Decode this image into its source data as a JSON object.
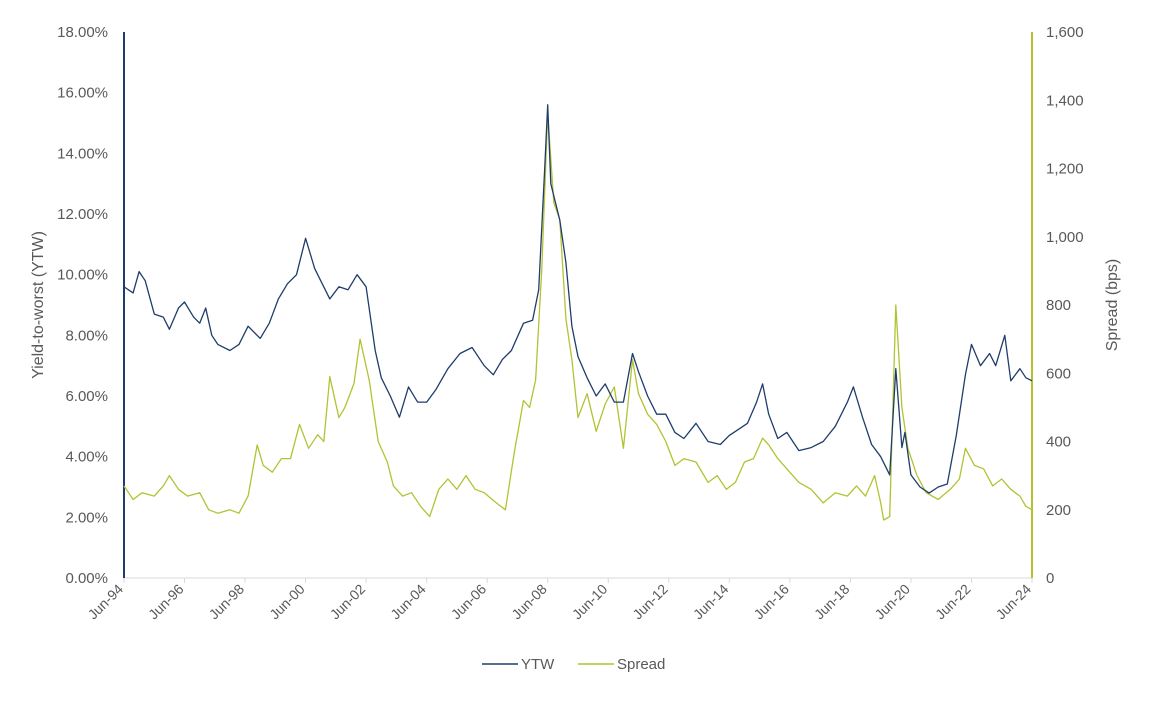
{
  "colors": {
    "ytw": "#1f3d6b",
    "spread": "#b3c232",
    "axis_text": "#595959",
    "left_axis_line": "#1f3d6b",
    "right_axis_line": "#b3c232",
    "baseline": "#d9d9d9"
  },
  "chart_data": {
    "type": "line",
    "title": "",
    "x_tick_labels": [
      "Jun-94",
      "Jun-96",
      "Jun-98",
      "Jun-00",
      "Jun-02",
      "Jun-04",
      "Jun-06",
      "Jun-08",
      "Jun-10",
      "Jun-12",
      "Jun-14",
      "Jun-16",
      "Jun-18",
      "Jun-20",
      "Jun-22",
      "Jun-24"
    ],
    "xlim": [
      1994.5,
      2024.5
    ],
    "y_left": {
      "label": "Yield-to-worst (YTW)",
      "ticks": [
        "0.00%",
        "2.00%",
        "4.00%",
        "6.00%",
        "8.00%",
        "10.00%",
        "12.00%",
        "14.00%",
        "16.00%",
        "18.00%"
      ],
      "ylim": [
        0,
        18
      ]
    },
    "y_right": {
      "label": "Spread (bps)",
      "ticks": [
        "0",
        "200",
        "400",
        "600",
        "800",
        "1,000",
        "1,200",
        "1,400",
        "1,600"
      ],
      "ylim": [
        0,
        1600
      ]
    },
    "legend_position": "bottom-center",
    "series": [
      {
        "name": "YTW",
        "axis": "left",
        "x": [
          1994.5,
          1994.8,
          1995.0,
          1995.2,
          1995.5,
          1995.8,
          1996.0,
          1996.3,
          1996.5,
          1996.8,
          1997.0,
          1997.2,
          1997.4,
          1997.6,
          1998.0,
          1998.3,
          1998.6,
          1999.0,
          1999.3,
          1999.6,
          1999.9,
          2000.2,
          2000.5,
          2000.8,
          2001.0,
          2001.3,
          2001.6,
          2001.9,
          2002.2,
          2002.5,
          2002.8,
          2003.0,
          2003.3,
          2003.6,
          2003.9,
          2004.2,
          2004.5,
          2004.8,
          2005.2,
          2005.6,
          2006.0,
          2006.4,
          2006.7,
          2007.0,
          2007.3,
          2007.7,
          2008.0,
          2008.2,
          2008.4,
          2008.5,
          2008.6,
          2008.9,
          2009.1,
          2009.3,
          2009.5,
          2009.8,
          2010.1,
          2010.4,
          2010.7,
          2011.0,
          2011.3,
          2011.5,
          2011.8,
          2012.1,
          2012.4,
          2012.7,
          2013.0,
          2013.4,
          2013.8,
          2014.2,
          2014.5,
          2014.8,
          2015.1,
          2015.4,
          2015.6,
          2015.8,
          2016.1,
          2016.4,
          2016.8,
          2017.2,
          2017.6,
          2018.0,
          2018.4,
          2018.6,
          2018.9,
          2019.2,
          2019.5,
          2019.8,
          2020.0,
          2020.2,
          2020.3,
          2020.5,
          2020.8,
          2021.1,
          2021.4,
          2021.7,
          2022.0,
          2022.3,
          2022.5,
          2022.8,
          2023.1,
          2023.3,
          2023.6,
          2023.8,
          2024.1,
          2024.3,
          2024.5
        ],
        "values": [
          9.6,
          9.4,
          10.1,
          9.8,
          8.7,
          8.6,
          8.2,
          8.9,
          9.1,
          8.6,
          8.4,
          8.9,
          8.0,
          7.7,
          7.5,
          7.7,
          8.3,
          7.9,
          8.4,
          9.2,
          9.7,
          10.0,
          11.2,
          10.2,
          9.8,
          9.2,
          9.6,
          9.5,
          10.0,
          9.6,
          7.5,
          6.6,
          6.0,
          5.3,
          6.3,
          5.8,
          5.8,
          6.2,
          6.9,
          7.4,
          7.6,
          7.0,
          6.7,
          7.2,
          7.5,
          8.4,
          8.5,
          9.5,
          13.5,
          15.6,
          13.0,
          11.8,
          10.4,
          8.3,
          7.3,
          6.6,
          6.0,
          6.4,
          5.8,
          5.8,
          7.4,
          6.8,
          6.0,
          5.4,
          5.4,
          4.8,
          4.6,
          5.1,
          4.5,
          4.4,
          4.7,
          4.9,
          5.1,
          5.8,
          6.4,
          5.4,
          4.6,
          4.8,
          4.2,
          4.3,
          4.5,
          5.0,
          5.8,
          6.3,
          5.3,
          4.4,
          4.0,
          3.4,
          6.9,
          4.3,
          4.8,
          3.4,
          3.0,
          2.8,
          3.0,
          3.1,
          4.7,
          6.7,
          7.7,
          7.0,
          7.4,
          7.0,
          8.0,
          6.5,
          6.9,
          6.6,
          6.5
        ]
      },
      {
        "name": "Spread",
        "axis": "right",
        "x": [
          1994.5,
          1994.8,
          1995.1,
          1995.5,
          1995.8,
          1996.0,
          1996.3,
          1996.6,
          1997.0,
          1997.3,
          1997.6,
          1998.0,
          1998.3,
          1998.6,
          1998.9,
          1999.1,
          1999.4,
          1999.7,
          2000.0,
          2000.3,
          2000.6,
          2000.9,
          2001.1,
          2001.3,
          2001.6,
          2001.8,
          2002.1,
          2002.3,
          2002.6,
          2002.9,
          2003.2,
          2003.4,
          2003.7,
          2004.0,
          2004.3,
          2004.6,
          2004.9,
          2005.2,
          2005.5,
          2005.8,
          2006.1,
          2006.4,
          2006.8,
          2007.1,
          2007.4,
          2007.7,
          2007.9,
          2008.1,
          2008.3,
          2008.5,
          2008.7,
          2008.9,
          2009.1,
          2009.3,
          2009.5,
          2009.8,
          2010.1,
          2010.4,
          2010.7,
          2011.0,
          2011.3,
          2011.5,
          2011.8,
          2012.1,
          2012.4,
          2012.7,
          2013.0,
          2013.4,
          2013.8,
          2014.1,
          2014.4,
          2014.7,
          2015.0,
          2015.3,
          2015.6,
          2015.8,
          2016.1,
          2016.4,
          2016.8,
          2017.2,
          2017.6,
          2018.0,
          2018.4,
          2018.7,
          2019.0,
          2019.3,
          2019.5,
          2019.6,
          2019.8,
          2020.0,
          2020.2,
          2020.4,
          2020.7,
          2021.0,
          2021.4,
          2021.8,
          2022.1,
          2022.3,
          2022.6,
          2022.9,
          2023.2,
          2023.5,
          2023.8,
          2024.1,
          2024.3,
          2024.5
        ],
        "values": [
          270,
          230,
          250,
          240,
          270,
          300,
          260,
          240,
          250,
          200,
          190,
          200,
          190,
          240,
          390,
          330,
          310,
          350,
          350,
          450,
          380,
          420,
          400,
          590,
          470,
          500,
          570,
          700,
          580,
          400,
          340,
          270,
          240,
          250,
          210,
          180,
          260,
          290,
          260,
          300,
          260,
          250,
          220,
          200,
          370,
          520,
          500,
          580,
          900,
          1360,
          1100,
          1050,
          760,
          640,
          470,
          540,
          430,
          510,
          560,
          380,
          640,
          540,
          480,
          450,
          400,
          330,
          350,
          340,
          280,
          300,
          260,
          280,
          340,
          350,
          410,
          390,
          350,
          320,
          280,
          260,
          220,
          250,
          240,
          270,
          240,
          300,
          220,
          170,
          180,
          800,
          500,
          380,
          300,
          250,
          230,
          260,
          290,
          380,
          330,
          320,
          270,
          290,
          260,
          240,
          210,
          200
        ]
      }
    ]
  }
}
